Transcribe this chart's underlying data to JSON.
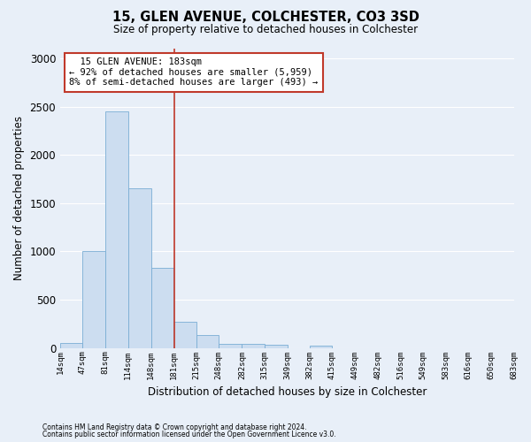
{
  "title_line1": "15, GLEN AVENUE, COLCHESTER, CO3 3SD",
  "title_line2": "Size of property relative to detached houses in Colchester",
  "xlabel": "Distribution of detached houses by size in Colchester",
  "ylabel": "Number of detached properties",
  "footer_line1": "Contains HM Land Registry data © Crown copyright and database right 2024.",
  "footer_line2": "Contains public sector information licensed under the Open Government Licence v3.0.",
  "annotation_line1": "  15 GLEN AVENUE: 183sqm  ",
  "annotation_line2": "← 92% of detached houses are smaller (5,959)",
  "annotation_line3": "8% of semi-detached houses are larger (493) →",
  "property_size": 183,
  "bar_edges": [
    14,
    47,
    81,
    114,
    148,
    181,
    215,
    248,
    282,
    315,
    349,
    382,
    415,
    449,
    482,
    516,
    549,
    583,
    616,
    650,
    683
  ],
  "bar_heights": [
    55,
    1000,
    2450,
    1650,
    830,
    270,
    135,
    45,
    45,
    35,
    0,
    25,
    0,
    0,
    0,
    0,
    0,
    0,
    0,
    0
  ],
  "bar_color": "#ccddf0",
  "bar_edge_color": "#7aadd4",
  "vline_color": "#c0392b",
  "vline_x": 183,
  "annotation_box_color": "#c0392b",
  "ylim": [
    0,
    3100
  ],
  "xlim": [
    14,
    683
  ],
  "background_color": "#e8eff8",
  "grid_color": "#ffffff"
}
